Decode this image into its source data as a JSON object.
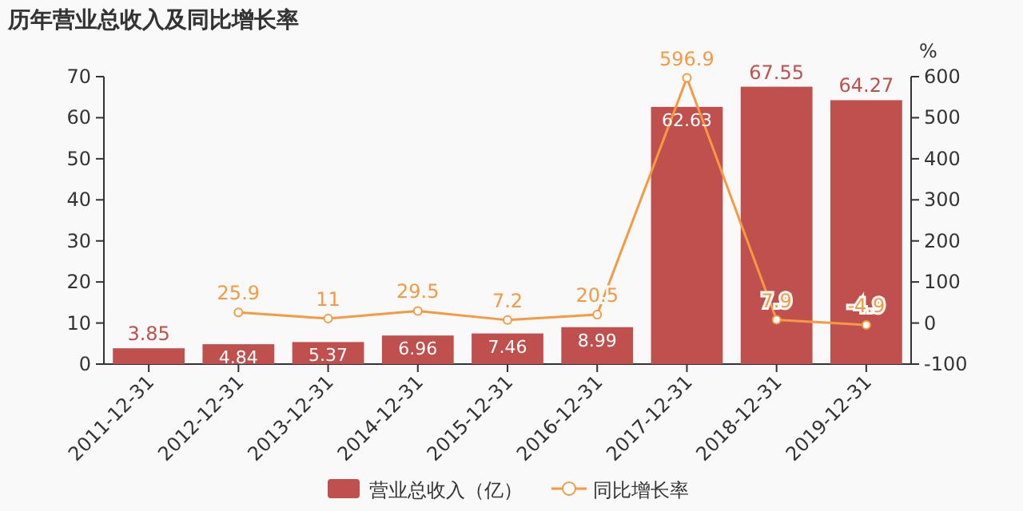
{
  "chart_data": {
    "type": "bar",
    "title": "历年营业总收入及同比增长率",
    "y2label": "%",
    "categories": [
      "2011-12-31",
      "2012-12-31",
      "2013-12-31",
      "2014-12-31",
      "2015-12-31",
      "2016-12-31",
      "2017-12-31",
      "2018-12-31",
      "2019-12-31"
    ],
    "series": [
      {
        "name": "营业总收入（亿）",
        "color": "#c0504d",
        "values": [
          3.85,
          4.84,
          5.37,
          6.96,
          7.46,
          8.99,
          62.63,
          67.55,
          64.27
        ]
      },
      {
        "name": "同比增长率",
        "type": "line",
        "axis": "y2",
        "color": "#f59a43",
        "marker": "circle",
        "values": [
          null,
          25.9,
          11,
          29.5,
          7.2,
          20.5,
          596.9,
          7.9,
          -4.9
        ]
      }
    ],
    "ylim": [
      0,
      70
    ],
    "yticks": [
      0,
      10,
      20,
      30,
      40,
      50,
      60,
      70
    ],
    "y2lim": [
      -100,
      600
    ],
    "y2ticks": [
      -100,
      0,
      100,
      200,
      300,
      400,
      500,
      600
    ],
    "data_labels": true,
    "legend": "bottom",
    "grid": false
  }
}
